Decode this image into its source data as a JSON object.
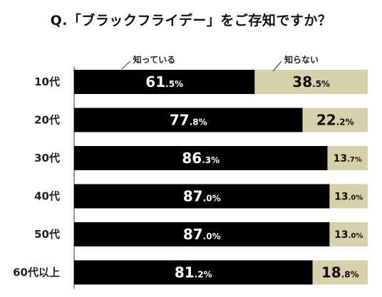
{
  "title": "Q.「ブラックフライデー」をご存知ですか？",
  "chart_data": {
    "type": "bar",
    "stacked": true,
    "orientation": "horizontal",
    "title": "Q.「ブラックフライデー」をご存知ですか？",
    "unit": "%",
    "categories": [
      "10代",
      "20代",
      "30代",
      "40代",
      "50代",
      "60代以上"
    ],
    "series": [
      {
        "name": "知っている",
        "values": [
          61.5,
          77.8,
          86.3,
          87.0,
          87.0,
          81.2
        ],
        "color": "#000000",
        "label_color": "#ffffff"
      },
      {
        "name": "知らない",
        "values": [
          38.5,
          22.2,
          13.7,
          13.0,
          13.0,
          18.8
        ],
        "color": "#d6d0ab",
        "label_color": "#111111"
      }
    ],
    "xlim": [
      0,
      100
    ],
    "grid": false,
    "legend": "top, callout labels above first bar"
  }
}
